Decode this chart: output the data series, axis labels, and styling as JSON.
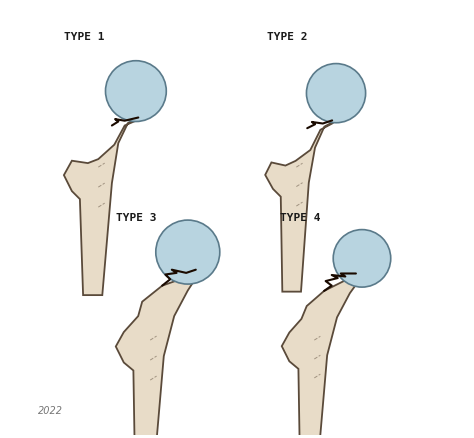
{
  "background_color": "#ffffff",
  "bone_color": "#e8dcc8",
  "bone_edge_color": "#5a4a3a",
  "bone_inner_color": "#d4c4a8",
  "head_color": "#b8d4e0",
  "head_edge_color": "#5a7a8a",
  "fracture_color": "#1a0a00",
  "labels": [
    "TYPE 1",
    "TYPE 2",
    "TYPE 3",
    "TYPE 4"
  ],
  "label_color": "#1a1a1a",
  "label_fontsize": 8,
  "signature": "2022",
  "figsize": [
    4.74,
    4.38
  ],
  "dpi": 100
}
